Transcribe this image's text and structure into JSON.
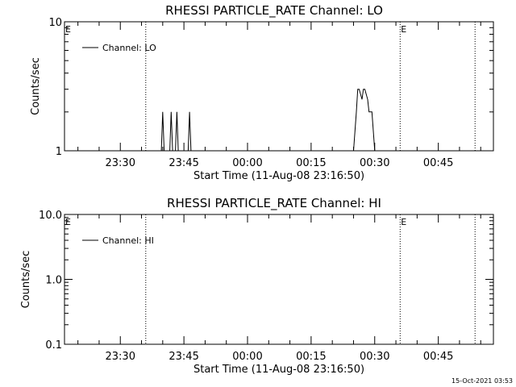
{
  "chart_data": [
    {
      "type": "line",
      "title": "RHESSI PARTICLE_RATE Channel: LO",
      "xlabel": "Start Time (11-Aug-08 23:16:50)",
      "ylabel": "Counts/sec",
      "yscale": "log",
      "ylim": [
        1,
        10
      ],
      "y_tick_labels": [
        "1",
        "10"
      ],
      "x_tick_labels": [
        "23:30",
        "23:45",
        "00:00",
        "00:15",
        "00:30",
        "00:45"
      ],
      "grid": false,
      "legend": "top-left",
      "markers": [
        {
          "label": "E",
          "x": "23:16:50",
          "style": "none"
        },
        {
          "label": "",
          "x": "23:36:00",
          "style": "dotted"
        },
        {
          "label": "E",
          "x": "00:36:00",
          "style": "dotted"
        },
        {
          "label": "",
          "x": "00:53:40",
          "style": "dotted"
        }
      ],
      "series": [
        {
          "name": "Channel: LO",
          "x": [
            "23:39:40",
            "23:40:00",
            "23:40:20",
            "23:41:40",
            "23:42:00",
            "23:42:20",
            "23:43:00",
            "23:43:20",
            "23:43:40",
            "23:46:00",
            "23:46:20",
            "23:46:40",
            "00:25:00",
            "00:25:40",
            "00:26:00",
            "00:26:20",
            "00:27:00",
            "00:27:20",
            "00:27:40",
            "00:28:20",
            "00:28:40",
            "00:29:20",
            "00:30:00",
            "00:30:20"
          ],
          "values": [
            1,
            2,
            1,
            1,
            2,
            1,
            1,
            2,
            1,
            1,
            2,
            1,
            1,
            2,
            3,
            3,
            2.5,
            3,
            3,
            2.5,
            2,
            2,
            1,
            1
          ]
        }
      ]
    },
    {
      "type": "line",
      "title": "RHESSI PARTICLE_RATE Channel: HI",
      "xlabel": "Start Time (11-Aug-08 23:16:50)",
      "ylabel": "Counts/sec",
      "yscale": "log",
      "ylim": [
        0.1,
        10
      ],
      "y_tick_labels": [
        "0.1",
        "1.0",
        "10.0"
      ],
      "x_tick_labels": [
        "23:30",
        "23:45",
        "00:00",
        "00:15",
        "00:30",
        "00:45"
      ],
      "grid": false,
      "legend": "top-left",
      "markers": [
        {
          "label": "E",
          "x": "23:16:50",
          "style": "none"
        },
        {
          "label": "",
          "x": "23:36:00",
          "style": "dotted"
        },
        {
          "label": "E",
          "x": "00:36:00",
          "style": "dotted"
        },
        {
          "label": "",
          "x": "00:53:40",
          "style": "dotted"
        }
      ],
      "series": [
        {
          "name": "Channel: HI",
          "x": [],
          "values": []
        }
      ]
    }
  ],
  "footer": {
    "timestamp": "15-Oct-2021 03:53"
  }
}
